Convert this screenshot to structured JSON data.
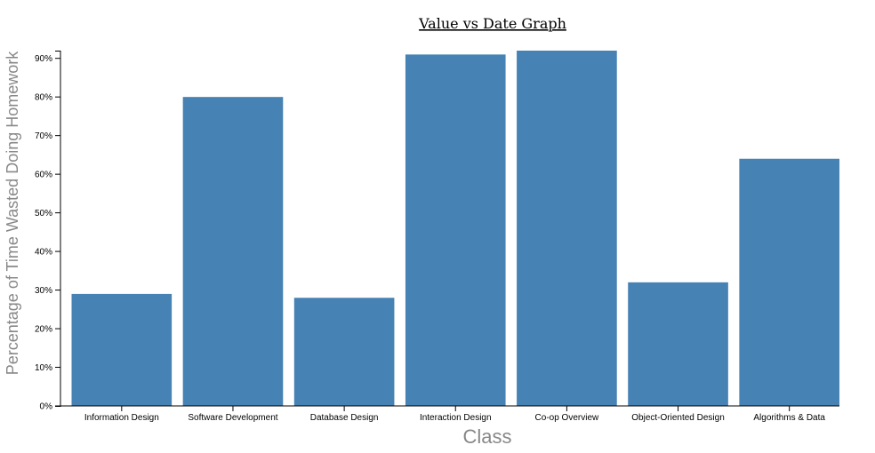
{
  "chart_data": {
    "type": "bar",
    "title": "Value vs Date Graph",
    "xlabel": "Class",
    "ylabel": "Percentage of Time Wasted Doing Homework",
    "categories": [
      "Information Design",
      "Software Development",
      "Database Design",
      "Interaction Design",
      "Co-op Overview",
      "Object-Oriented Design",
      "Algorithms & Data"
    ],
    "values": [
      29,
      80,
      28,
      91,
      92,
      32,
      64
    ],
    "y_ticks": [
      "0%",
      "10%",
      "20%",
      "30%",
      "40%",
      "50%",
      "60%",
      "70%",
      "80%",
      "90%"
    ],
    "ylim": [
      0,
      92
    ],
    "grid": false,
    "bar_color": "#4682b4"
  }
}
